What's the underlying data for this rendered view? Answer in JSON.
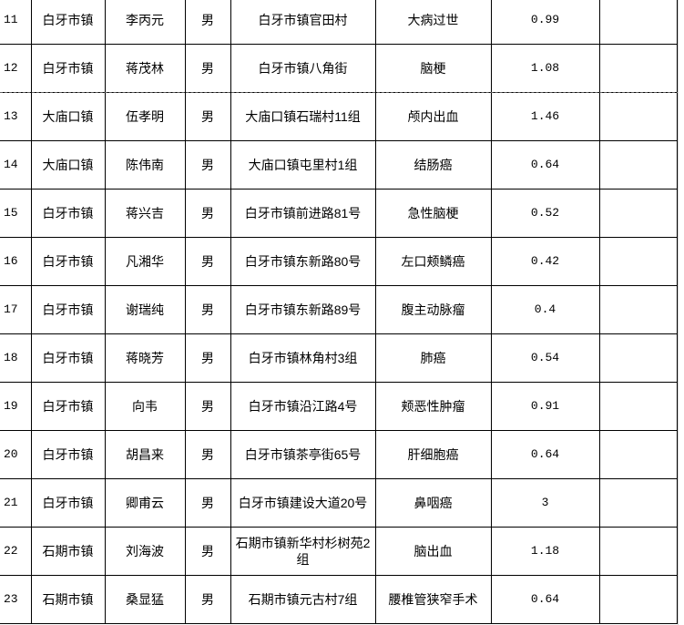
{
  "rows": [
    {
      "no": "11",
      "town": "白牙市镇",
      "name": "李丙元",
      "sex": "男",
      "address": "白牙市镇官田村",
      "cause": "大病过世",
      "amount": "0.99",
      "note": ""
    },
    {
      "no": "12",
      "town": "白牙市镇",
      "name": "蒋茂林",
      "sex": "男",
      "address": "白牙市镇八角街",
      "cause": "脑梗",
      "amount": "1.08",
      "note": ""
    },
    {
      "no": "13",
      "town": "大庙口镇",
      "name": "伍孝明",
      "sex": "男",
      "address": "大庙口镇石瑞村11组",
      "cause": "颅内出血",
      "amount": "1.46",
      "note": ""
    },
    {
      "no": "14",
      "town": "大庙口镇",
      "name": "陈伟南",
      "sex": "男",
      "address": "大庙口镇屯里村1组",
      "cause": "结肠癌",
      "amount": "0.64",
      "note": ""
    },
    {
      "no": "15",
      "town": "白牙市镇",
      "name": "蒋兴吉",
      "sex": "男",
      "address": "白牙市镇前进路81号",
      "cause": "急性脑梗",
      "amount": "0.52",
      "note": ""
    },
    {
      "no": "16",
      "town": "白牙市镇",
      "name": "凡湘华",
      "sex": "男",
      "address": "白牙市镇东新路80号",
      "cause": "左口颊鳞癌",
      "amount": "0.42",
      "note": ""
    },
    {
      "no": "17",
      "town": "白牙市镇",
      "name": "谢瑞纯",
      "sex": "男",
      "address": "白牙市镇东新路89号",
      "cause": "腹主动脉瘤",
      "amount": "0.4",
      "note": ""
    },
    {
      "no": "18",
      "town": "白牙市镇",
      "name": "蒋晓芳",
      "sex": "男",
      "address": "白牙市镇林角村3组",
      "cause": "肺癌",
      "amount": "0.54",
      "note": ""
    },
    {
      "no": "19",
      "town": "白牙市镇",
      "name": "向韦",
      "sex": "男",
      "address": "白牙市镇沿江路4号",
      "cause": "颊恶性肿瘤",
      "amount": "0.91",
      "note": ""
    },
    {
      "no": "20",
      "town": "白牙市镇",
      "name": "胡昌来",
      "sex": "男",
      "address": "白牙市镇茶亭街65号",
      "cause": "肝细胞癌",
      "amount": "0.64",
      "note": ""
    },
    {
      "no": "21",
      "town": "白牙市镇",
      "name": "卿甫云",
      "sex": "男",
      "address": "白牙市镇建设大道20号",
      "cause": "鼻咽癌",
      "amount": "3",
      "note": ""
    },
    {
      "no": "22",
      "town": "石期市镇",
      "name": "刘海波",
      "sex": "男",
      "address": "石期市镇新华村杉树苑2组",
      "cause": "脑出血",
      "amount": "1.18",
      "note": ""
    },
    {
      "no": "23",
      "town": "石期市镇",
      "name": "桑显猛",
      "sex": "男",
      "address": "石期市镇元古村7组",
      "cause": "腰椎管狭窄手术",
      "amount": "0.64",
      "note": ""
    }
  ]
}
